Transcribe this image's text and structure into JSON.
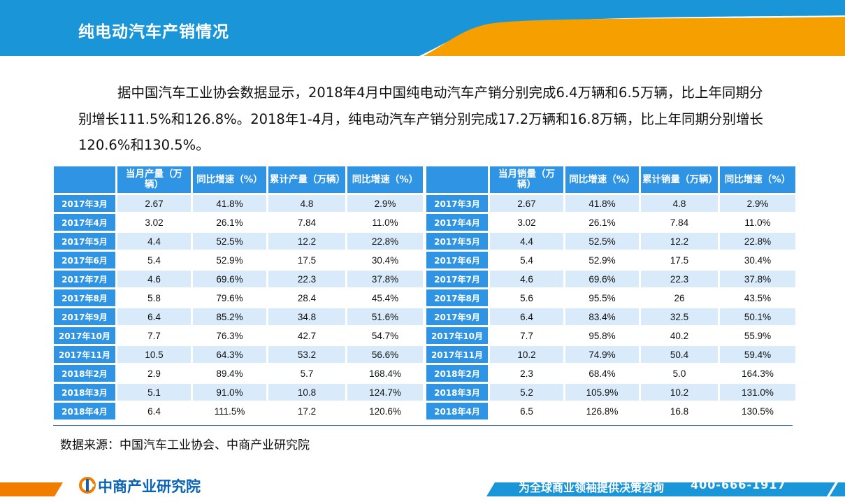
{
  "header": {
    "title": "纯电动汽车产销情况"
  },
  "intro": "据中国汽车工业协会数据显示，2018年4月中国纯电动汽车产销分别完成6.4万辆和6.5万辆，比上年同期分别增长111.5%和126.8%。2018年1-4月，纯电动汽车产销分别完成17.2万辆和16.8万辆，比上年同期分别增长120.6%和130.5%。",
  "production_table": {
    "headers": [
      "",
      "当月产量（万辆）",
      "同比增速（%）",
      "累计产量（万辆）",
      "同比增速（%）"
    ],
    "rows": [
      [
        "2017年3月",
        "2.67",
        "41.8%",
        "4.8",
        "2.9%"
      ],
      [
        "2017年4月",
        "3.02",
        "26.1%",
        "7.84",
        "11.0%"
      ],
      [
        "2017年5月",
        "4.4",
        "52.5%",
        "12.2",
        "22.8%"
      ],
      [
        "2017年6月",
        "5.4",
        "52.9%",
        "17.5",
        "30.4%"
      ],
      [
        "2017年7月",
        "4.6",
        "69.6%",
        "22.3",
        "37.8%"
      ],
      [
        "2017年8月",
        "5.8",
        "79.6%",
        "28.4",
        "45.4%"
      ],
      [
        "2017年9月",
        "6.4",
        "85.2%",
        "34.8",
        "51.6%"
      ],
      [
        "2017年10月",
        "7.7",
        "76.3%",
        "42.7",
        "54.7%"
      ],
      [
        "2017年11月",
        "10.5",
        "64.3%",
        "53.2",
        "56.6%"
      ],
      [
        "2018年2月",
        "2.9",
        "89.4%",
        "5.7",
        "168.4%"
      ],
      [
        "2018年3月",
        "5.1",
        "91.0%",
        "10.8",
        "124.7%"
      ],
      [
        "2018年4月",
        "6.4",
        "111.5%",
        "17.2",
        "120.6%"
      ]
    ]
  },
  "sales_table": {
    "headers": [
      "",
      "当月销量（万辆）",
      "同比增速（%）",
      "累计销量（万辆）",
      "同比增速（%）"
    ],
    "rows": [
      [
        "2017年3月",
        "2.67",
        "41.8%",
        "4.8",
        "2.9%"
      ],
      [
        "2017年4月",
        "3.02",
        "26.1%",
        "7.84",
        "11.0%"
      ],
      [
        "2017年5月",
        "4.4",
        "52.5%",
        "12.2",
        "22.8%"
      ],
      [
        "2017年6月",
        "5.4",
        "52.9%",
        "17.5",
        "30.4%"
      ],
      [
        "2017年7月",
        "4.6",
        "69.6%",
        "22.3",
        "37.8%"
      ],
      [
        "2017年8月",
        "5.6",
        "95.5%",
        "26",
        "43.5%"
      ],
      [
        "2017年9月",
        "6.4",
        "83.4%",
        "32.5",
        "50.1%"
      ],
      [
        "2017年10月",
        "7.7",
        "95.8%",
        "40.2",
        "55.9%"
      ],
      [
        "2017年11月",
        "10.2",
        "74.9%",
        "50.4",
        "59.4%"
      ],
      [
        "2018年2月",
        "2.3",
        "68.4%",
        "5.0",
        "164.3%"
      ],
      [
        "2018年3月",
        "5.2",
        "105.9%",
        "10.2",
        "131.0%"
      ],
      [
        "2018年4月",
        "6.5",
        "126.8%",
        "16.8",
        "130.5%"
      ]
    ]
  },
  "source": "数据来源：中国汽车工业协会、中商产业研究院",
  "footer": {
    "logo_text": "中商产业研究院",
    "slogan": "为全球商业领袖提供决策咨询",
    "phone": "400-666-1917"
  },
  "colors": {
    "header_blue": "#1a96d8",
    "accent_orange": "#f5a000",
    "table_blue": "#2e94e3",
    "stripe": "#d9ebfa"
  }
}
